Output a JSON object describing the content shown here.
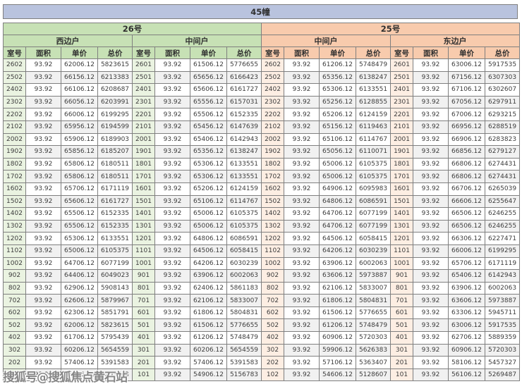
{
  "title": "45幢",
  "watermark": "搜狐号@搜狐焦点黄石站",
  "colors": {
    "title_band": "#b9c3de",
    "building_26_header": "#c7e1b5",
    "building_25_header": "#f8cbad",
    "room_cell_green": "#eaf3e1",
    "room_cell_orange": "#fdeee3",
    "alt_row": "#f1f1f1",
    "border": "#7f7f7f"
  },
  "buildings": [
    {
      "name": "26号",
      "units": [
        "西边户",
        "中间户"
      ]
    },
    {
      "name": "25号",
      "units": [
        "中间户",
        "东边户"
      ]
    }
  ],
  "col_headers": [
    "室号",
    "面积",
    "单价",
    "总价"
  ],
  "rows": [
    [
      "2602",
      "93.92",
      "62006.12",
      "5823615",
      "2601",
      "93.92",
      "61506.12",
      "5776655",
      "2602",
      "93.92",
      "61206.12",
      "5748479",
      "2601",
      "93.92",
      "63006.12",
      "5917535"
    ],
    [
      "2502",
      "93.92",
      "66156.12",
      "6213383",
      "2501",
      "93.92",
      "65656.12",
      "6166423",
      "2502",
      "93.92",
      "65356.12",
      "6138247",
      "2501",
      "93.92",
      "67156.12",
      "6307303"
    ],
    [
      "2402",
      "93.92",
      "66106.12",
      "6208687",
      "2401",
      "93.92",
      "65606.12",
      "6161727",
      "2402",
      "93.92",
      "65306.12",
      "6133551",
      "2401",
      "93.92",
      "67106.12",
      "6302607"
    ],
    [
      "2302",
      "93.92",
      "66056.12",
      "6203991",
      "2301",
      "93.92",
      "65556.12",
      "6157031",
      "2302",
      "93.92",
      "65256.12",
      "6128855",
      "2301",
      "93.92",
      "67056.12",
      "6297911"
    ],
    [
      "2202",
      "93.92",
      "66006.12",
      "6199295",
      "2201",
      "93.92",
      "65506.12",
      "6152335",
      "2202",
      "93.92",
      "65206.12",
      "6124159",
      "2201",
      "93.92",
      "67006.12",
      "6293215"
    ],
    [
      "2102",
      "93.92",
      "65956.12",
      "6194599",
      "2101",
      "93.92",
      "65456.12",
      "6147639",
      "2102",
      "93.92",
      "65156.12",
      "6119463",
      "2101",
      "93.92",
      "66956.12",
      "6288519"
    ],
    [
      "2002",
      "93.92",
      "65906.12",
      "6189903",
      "2001",
      "93.92",
      "65406.12",
      "6142943",
      "2002",
      "93.92",
      "65106.12",
      "6114767",
      "2001",
      "93.92",
      "66906.12",
      "6283823"
    ],
    [
      "1902",
      "93.92",
      "65856.12",
      "6185207",
      "1901",
      "93.92",
      "65356.12",
      "6138247",
      "1902",
      "93.92",
      "65056.12",
      "6110071",
      "1901",
      "93.92",
      "66856.12",
      "6279127"
    ],
    [
      "1802",
      "93.92",
      "65806.12",
      "6180511",
      "1801",
      "93.92",
      "65306.12",
      "6133551",
      "1802",
      "93.92",
      "65006.12",
      "6105375",
      "1801",
      "93.92",
      "66806.12",
      "6274431"
    ],
    [
      "1702",
      "93.92",
      "65806.12",
      "6180511",
      "1701",
      "93.92",
      "65306.12",
      "6133551",
      "1702",
      "93.92",
      "65006.12",
      "6105375",
      "1701",
      "93.92",
      "66806.12",
      "6274431"
    ],
    [
      "1602",
      "93.92",
      "65706.12",
      "6171119",
      "1601",
      "93.92",
      "65206.12",
      "6124159",
      "1602",
      "93.92",
      "64906.12",
      "6095983",
      "1601",
      "93.92",
      "66706.12",
      "6265039"
    ],
    [
      "1502",
      "93.92",
      "65606.12",
      "6161727",
      "1501",
      "93.92",
      "65106.12",
      "6114767",
      "1502",
      "93.92",
      "64806.12",
      "6086591",
      "1501",
      "93.92",
      "66606.12",
      "6255647"
    ],
    [
      "1402",
      "93.92",
      "65506.12",
      "6152335",
      "1401",
      "93.92",
      "65006.12",
      "6105375",
      "1402",
      "93.92",
      "64706.12",
      "6077199",
      "1401",
      "93.92",
      "66506.12",
      "6246255"
    ],
    [
      "1302",
      "93.92",
      "65506.12",
      "6152335",
      "1301",
      "93.92",
      "65006.12",
      "6105375",
      "1302",
      "93.92",
      "64706.12",
      "6077199",
      "1301",
      "93.92",
      "66506.12",
      "6246255"
    ],
    [
      "1202",
      "93.92",
      "65306.12",
      "6133551",
      "1201",
      "93.92",
      "64806.12",
      "6086591",
      "1202",
      "93.92",
      "64506.12",
      "6058415",
      "1201",
      "93.92",
      "66306.12",
      "6227471"
    ],
    [
      "1102",
      "93.92",
      "65006.12",
      "6105375",
      "1101",
      "93.92",
      "64506.12",
      "6058415",
      "1102",
      "93.92",
      "64206.12",
      "6030239",
      "1101",
      "93.92",
      "66006.12",
      "6199295"
    ],
    [
      "1002",
      "93.92",
      "64706.12",
      "6077199",
      "1001",
      "93.92",
      "64206.12",
      "6030239",
      "1002",
      "93.92",
      "63906.12",
      "6002063",
      "1001",
      "93.92",
      "65706.12",
      "6171119"
    ],
    [
      "902",
      "93.92",
      "64406.12",
      "6049023",
      "901",
      "93.92",
      "63906.12",
      "6002063",
      "902",
      "93.92",
      "63606.12",
      "5973887",
      "901",
      "93.92",
      "65406.12",
      "6142943"
    ],
    [
      "802",
      "93.92",
      "62906.12",
      "5908143",
      "801",
      "93.92",
      "62406.12",
      "5861183",
      "802",
      "93.92",
      "62106.12",
      "5833007",
      "801",
      "93.92",
      "63906.12",
      "6002063"
    ],
    [
      "702",
      "93.92",
      "62606.12",
      "5879967",
      "701",
      "93.92",
      "62106.12",
      "5833007",
      "702",
      "93.92",
      "61806.12",
      "5804831",
      "701",
      "93.92",
      "63606.12",
      "5973887"
    ],
    [
      "602",
      "93.92",
      "62306.12",
      "5851791",
      "601",
      "93.92",
      "61806.12",
      "5804831",
      "602",
      "93.92",
      "61506.12",
      "5776655",
      "601",
      "93.92",
      "63306.12",
      "5945711"
    ],
    [
      "502",
      "93.92",
      "62006.12",
      "5823615",
      "501",
      "93.92",
      "61506.12",
      "5776655",
      "502",
      "93.92",
      "61206.12",
      "5748479",
      "501",
      "93.92",
      "63006.12",
      "5917535"
    ],
    [
      "402",
      "93.92",
      "61706.12",
      "5795439",
      "401",
      "93.92",
      "61206.12",
      "5748479",
      "402",
      "93.92",
      "60906.12",
      "5720303",
      "401",
      "93.92",
      "62706.12",
      "5889359"
    ],
    [
      "302",
      "93.92",
      "60206.12",
      "5654559",
      "301",
      "93.92",
      "60206.12",
      "5654559",
      "302",
      "93.92",
      "59906.12",
      "5626383",
      "301",
      "93.92",
      "60906.12",
      "5720303"
    ],
    [
      "202",
      "93.92",
      "57406.12",
      "5391583",
      "201",
      "93.92",
      "57406.12",
      "5391583",
      "202",
      "93.92",
      "57106.12",
      "5363407",
      "201",
      "93.92",
      "58106.12",
      "5457327"
    ],
    [
      "102",
      "93.92",
      "55406.12",
      "5203743",
      "101",
      "93.92",
      "54906.12",
      "5156783",
      "102",
      "93.92",
      "54606.12",
      "5128607",
      "101",
      "93.92",
      "56106.12",
      "5269487"
    ]
  ]
}
